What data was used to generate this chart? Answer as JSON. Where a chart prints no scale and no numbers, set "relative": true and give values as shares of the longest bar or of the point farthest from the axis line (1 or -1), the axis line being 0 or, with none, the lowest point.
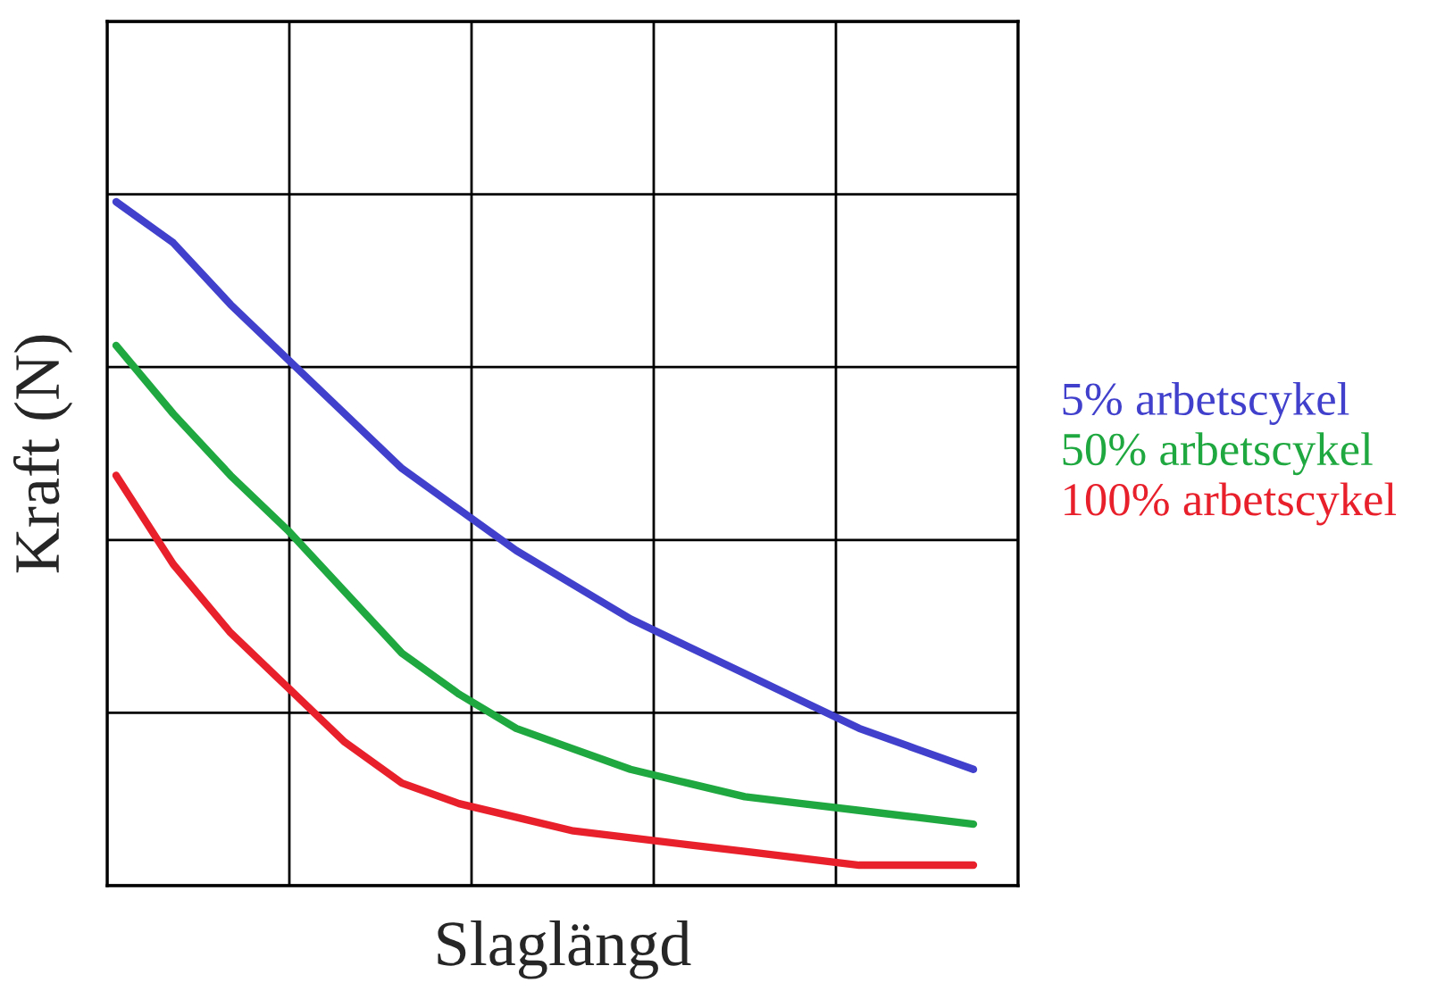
{
  "chart_data": {
    "type": "line",
    "relative": true,
    "xlabel": "Slaglängd",
    "ylabel": "Kraft (N)",
    "grid": true,
    "legend": "right",
    "marker": "none",
    "line_style": "solid",
    "categories": [
      null,
      null,
      null,
      null,
      null,
      null,
      null,
      null,
      null,
      null,
      null,
      null,
      null,
      null,
      null,
      null
    ],
    "series": [
      {
        "name": "5% arbetscykel",
        "color": "#4040cc",
        "values": [
          1,
          0.94,
          0.85,
          0.77,
          0.69,
          0.61,
          0.55,
          0.49,
          0.44,
          0.39,
          0.35,
          0.31,
          0.27,
          0.23,
          0.2,
          0.17
        ]
      },
      {
        "name": "50% arbetscykel",
        "color": "#20a840",
        "values": [
          0.79,
          0.69,
          0.6,
          0.52,
          0.43,
          0.34,
          0.28,
          0.23,
          0.2,
          0.17,
          0.15,
          0.13,
          0.12,
          0.11,
          0.1,
          0.09
        ]
      },
      {
        "name": "100% arbetscykel",
        "color": "#e8202c",
        "values": [
          0.6,
          0.47,
          0.37,
          0.29,
          0.21,
          0.15,
          0.12,
          0.1,
          0.08,
          0.07,
          0.06,
          0.05,
          0.04,
          0.03,
          0.03,
          0.03
        ]
      }
    ]
  }
}
